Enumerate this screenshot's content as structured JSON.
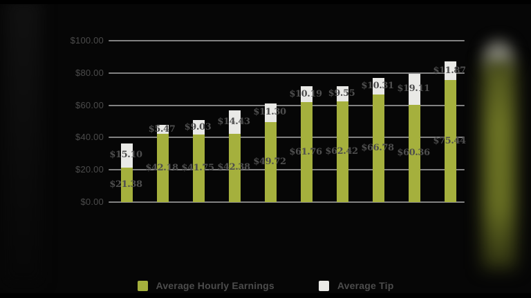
{
  "page": {
    "background_color": "#060606",
    "edge_glow_color": "#6b7224"
  },
  "chart_data": {
    "type": "bar",
    "stacked": true,
    "bar_count": 10,
    "x_tick_labels_visible": false,
    "series": [
      {
        "name": "Average Hourly Earnings",
        "color": "#a5b03d",
        "values": [
          21.38,
          42.18,
          41.75,
          42.38,
          49.72,
          61.76,
          62.42,
          66.78,
          60.36,
          75.44
        ],
        "labels": [
          "$21.38",
          "$42.18",
          "$41.75",
          "$42.38",
          "$49.72",
          "$61.76",
          "$62.42",
          "$66.78",
          "$60.36",
          "$75.44"
        ]
      },
      {
        "name": "Average Tip",
        "color": "#e9e9e6",
        "values": [
          15.1,
          5.47,
          9.03,
          14.43,
          11.3,
          10.19,
          9.55,
          10.31,
          19.11,
          11.87
        ],
        "labels": [
          "$15.10",
          "$5.47",
          "$9.03",
          "$14.43",
          "$11.30",
          "$10.19",
          "$9.55",
          "$10.31",
          "$19.11",
          "$11.87"
        ]
      }
    ],
    "y_axis": {
      "ticks": [
        {
          "value": 100,
          "label": "$100.00"
        },
        {
          "value": 80,
          "label": "$80.00"
        },
        {
          "value": 60,
          "label": "$60.00"
        },
        {
          "value": 40,
          "label": "$40.00"
        },
        {
          "value": 20,
          "label": "$20.00"
        },
        {
          "value": 0,
          "label": "$0.00"
        }
      ],
      "ylim": [
        0,
        100
      ],
      "tick_label_color": "#4b4b4b"
    },
    "grid": true,
    "gridline_color": "#828282",
    "value_label_color": "#4e4e4e",
    "legend_position": "bottom"
  },
  "legend": {
    "items": [
      {
        "label": "Average Hourly Earnings",
        "color": "#a5b03d"
      },
      {
        "label": "Average Tip",
        "color": "#e9e9e6"
      }
    ],
    "text_color": "#4c4c4c"
  }
}
